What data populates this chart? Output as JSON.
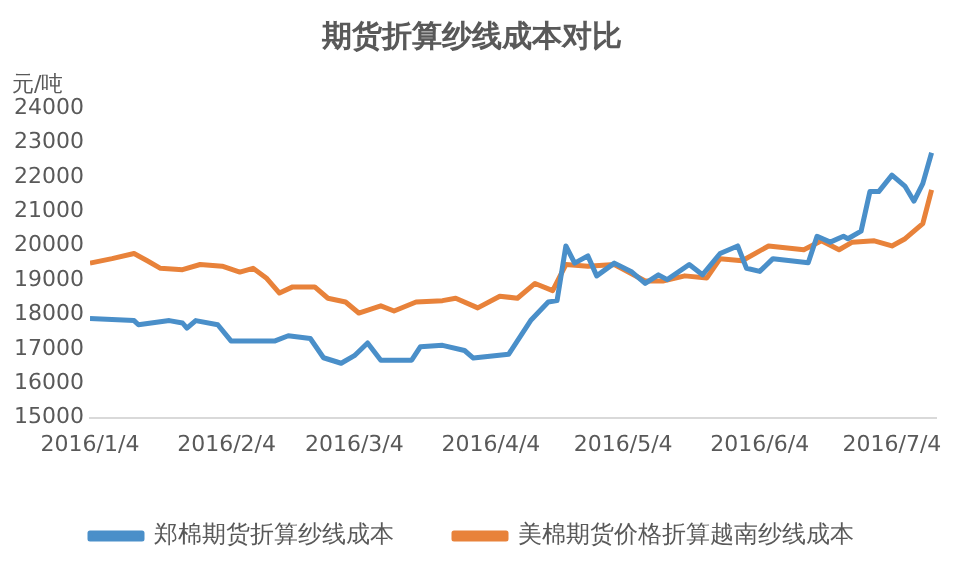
{
  "chart_data": {
    "type": "line",
    "title": "期货折算纱线成本对比",
    "ylabel": "元/吨",
    "xlim": [
      "2016-01-04",
      "2016-07-14"
    ],
    "xticks": [
      {
        "value": "2016-01-04",
        "label": "2016/1/4"
      },
      {
        "value": "2016-02-04",
        "label": "2016/2/4"
      },
      {
        "value": "2016-03-04",
        "label": "2016/3/4"
      },
      {
        "value": "2016-04-04",
        "label": "2016/4/4"
      },
      {
        "value": "2016-05-04",
        "label": "2016/5/4"
      },
      {
        "value": "2016-06-04",
        "label": "2016/6/4"
      },
      {
        "value": "2016-07-04",
        "label": "2016/7/4"
      }
    ],
    "ylim": [
      15000,
      24000
    ],
    "yticks": [
      15000,
      16000,
      17000,
      18000,
      19000,
      20000,
      21000,
      22000,
      23000,
      24000
    ],
    "grid": false,
    "legend": "bottom",
    "marker": "none",
    "line_style": "solid",
    "series": [
      {
        "name": "郑棉期货折算纱线成本",
        "color": "#4a8fc9",
        "x": [
          "2016-01-04",
          "2016-01-14",
          "2016-01-15",
          "2016-01-22",
          "2016-01-25",
          "2016-01-26",
          "2016-01-28",
          "2016-02-02",
          "2016-02-05",
          "2016-02-15",
          "2016-02-18",
          "2016-02-23",
          "2016-02-26",
          "2016-03-01",
          "2016-03-04",
          "2016-03-07",
          "2016-03-10",
          "2016-03-17",
          "2016-03-19",
          "2016-03-24",
          "2016-03-29",
          "2016-03-31",
          "2016-04-08",
          "2016-04-13",
          "2016-04-17",
          "2016-04-19",
          "2016-04-21",
          "2016-04-23",
          "2016-04-26",
          "2016-04-28",
          "2016-05-02",
          "2016-05-06",
          "2016-05-09",
          "2016-05-12",
          "2016-05-14",
          "2016-05-19",
          "2016-05-22",
          "2016-05-26",
          "2016-05-30",
          "2016-06-01",
          "2016-06-04",
          "2016-06-07",
          "2016-06-15",
          "2016-06-17",
          "2016-06-20",
          "2016-06-23",
          "2016-06-24",
          "2016-06-27",
          "2016-06-29",
          "2016-07-01",
          "2016-07-04",
          "2016-07-07",
          "2016-07-09",
          "2016-07-11",
          "2016-07-13"
        ],
        "values": [
          17880,
          17820,
          17700,
          17820,
          17750,
          17600,
          17820,
          17700,
          17230,
          17230,
          17380,
          17300,
          16740,
          16580,
          16800,
          17170,
          16670,
          16670,
          17060,
          17100,
          16950,
          16730,
          16840,
          17820,
          18360,
          18400,
          19990,
          19490,
          19700,
          19120,
          19490,
          19230,
          18900,
          19150,
          19010,
          19450,
          19150,
          19770,
          19990,
          19340,
          19250,
          19620,
          19500,
          20270,
          20100,
          20270,
          20200,
          20420,
          21570,
          21570,
          22050,
          21720,
          21290,
          21800,
          22700
        ]
      },
      {
        "name": "美棉期货价格折算越南纱线成本",
        "color": "#e8823a",
        "x": [
          "2016-01-04",
          "2016-01-09",
          "2016-01-14",
          "2016-01-17",
          "2016-01-20",
          "2016-01-25",
          "2016-01-29",
          "2016-02-03",
          "2016-02-07",
          "2016-02-10",
          "2016-02-13",
          "2016-02-16",
          "2016-02-19",
          "2016-02-24",
          "2016-02-27",
          "2016-03-02",
          "2016-03-05",
          "2016-03-10",
          "2016-03-13",
          "2016-03-18",
          "2016-03-24",
          "2016-03-27",
          "2016-04-01",
          "2016-04-06",
          "2016-04-10",
          "2016-04-14",
          "2016-04-18",
          "2016-04-21",
          "2016-04-26",
          "2016-05-02",
          "2016-05-09",
          "2016-05-13",
          "2016-05-18",
          "2016-05-23",
          "2016-05-26",
          "2016-05-31",
          "2016-06-06",
          "2016-06-14",
          "2016-06-18",
          "2016-06-22",
          "2016-06-25",
          "2016-06-30",
          "2016-07-04",
          "2016-07-07",
          "2016-07-11",
          "2016-07-13"
        ],
        "values": [
          19490,
          19620,
          19770,
          19560,
          19340,
          19300,
          19450,
          19400,
          19230,
          19340,
          19060,
          18620,
          18800,
          18800,
          18470,
          18360,
          18040,
          18250,
          18100,
          18360,
          18400,
          18470,
          18190,
          18530,
          18470,
          18900,
          18690,
          19450,
          19400,
          19450,
          18970,
          18970,
          19120,
          19060,
          19620,
          19560,
          19990,
          19880,
          20140,
          19880,
          20100,
          20140,
          19990,
          20200,
          20640,
          21620
        ]
      }
    ]
  }
}
